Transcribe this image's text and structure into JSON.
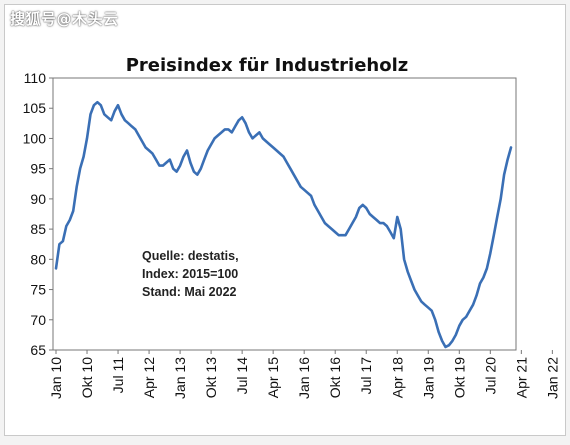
{
  "watermark": "搜狐号@木头云",
  "chart_data": {
    "type": "line",
    "title": "Preisindex für Industrieholz",
    "xlabel": "",
    "ylabel": "",
    "ylim": [
      65,
      110
    ],
    "yticks": [
      65,
      70,
      75,
      80,
      85,
      90,
      95,
      100,
      105,
      110
    ],
    "xticks": [
      "Jan 10",
      "Okt 10",
      "Jul 11",
      "Apr 12",
      "Jan 13",
      "Okt 13",
      "Jul 14",
      "Apr 15",
      "Jan 16",
      "Okt 16",
      "Jul 17",
      "Apr 18",
      "Jan 19",
      "Okt 19",
      "Jul 20",
      "Apr 21",
      "Jan 22"
    ],
    "grid": false,
    "line_color": "#3a6fb5",
    "annotation": [
      "Quelle: destatis,",
      "Index: 2015=100",
      "Stand: Mai   2022"
    ],
    "series": [
      {
        "x_start": "2010-01",
        "frequency": "monthly",
        "values": [
          78.5,
          82.5,
          83,
          85.5,
          86.5,
          88,
          92,
          95,
          97,
          100,
          104,
          105.5,
          106,
          105.5,
          104,
          103.5,
          103,
          104.5,
          105.5,
          104,
          103,
          102.5,
          102,
          101.5,
          100.5,
          99.5,
          98.5,
          98,
          97.5,
          96.5,
          95.5,
          95.5,
          96,
          96.5,
          95,
          94.5,
          95.5,
          97,
          98,
          96,
          94.5,
          94,
          95,
          96.5,
          98,
          99,
          100,
          100.5,
          101,
          101.5,
          101.5,
          101,
          102,
          103,
          103.5,
          102.5,
          101,
          100,
          100.5,
          101,
          100,
          99.5,
          99,
          98.5,
          98,
          97.5,
          97,
          96,
          95,
          94,
          93,
          92,
          91.5,
          91,
          90.5,
          89,
          88,
          87,
          86,
          85.5,
          85,
          84.5,
          84,
          84,
          84,
          85,
          86,
          87,
          88.5,
          89,
          88.5,
          87.5,
          87,
          86.5,
          86,
          86,
          85.5,
          84.5,
          83.5,
          87,
          85,
          80,
          78,
          76.5,
          75,
          74,
          73,
          72.5,
          72,
          71.5,
          70,
          68,
          66.5,
          65.5,
          65.8,
          66.5,
          67.5,
          69,
          70,
          70.5,
          71.5,
          72.5,
          74,
          76,
          77,
          78.5,
          81,
          84,
          87,
          90,
          94,
          96.5,
          98.5
        ]
      }
    ]
  }
}
